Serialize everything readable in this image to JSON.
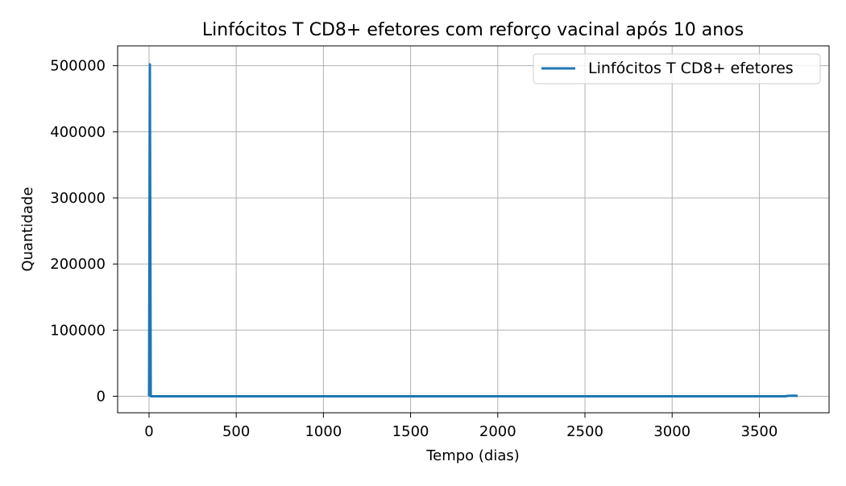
{
  "chart_data": {
    "type": "line",
    "title": "Linfócitos T CD8+ efetores com reforço vacinal após 10 anos",
    "xlabel": "Tempo (dias)",
    "ylabel": "Quantidade",
    "xlim": [
      -180,
      3900
    ],
    "ylim": [
      -25000,
      530000
    ],
    "xticks": [
      0,
      500,
      1000,
      1500,
      2000,
      2500,
      3000,
      3500
    ],
    "xtick_labels": [
      "0",
      "500",
      "1000",
      "1500",
      "2000",
      "2500",
      "3000",
      "3500"
    ],
    "yticks": [
      0,
      100000,
      200000,
      300000,
      400000,
      500000
    ],
    "ytick_labels": [
      "0",
      "100000",
      "200000",
      "300000",
      "400000",
      "500000"
    ],
    "grid": true,
    "legend_position": "top-right",
    "series": [
      {
        "name": "Linfócitos T CD8+ efetores",
        "color": "#1f77b4",
        "x": [
          0,
          5,
          10,
          15,
          3650,
          3660,
          3700,
          3720
        ],
        "y": [
          0,
          502000,
          0,
          0,
          0,
          500,
          800,
          600
        ]
      }
    ]
  }
}
